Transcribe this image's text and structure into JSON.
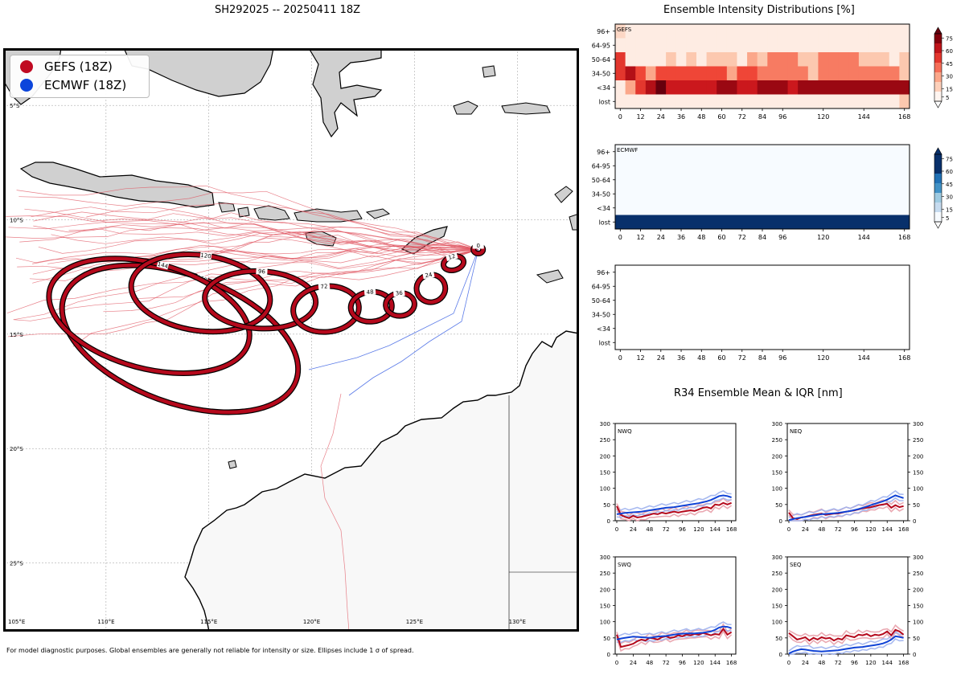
{
  "page": {
    "main_title": "SH292025 -- 20250411 18Z",
    "right_title": "Ensemble Intensity Distributions [%]",
    "r34_title": "R34 Ensemble Mean & IQR [nm]",
    "footnote": "For model diagnostic purposes. Global ensembles are generally not reliable for intensity or size. Ellipses include 1 σ of spread."
  },
  "colors": {
    "gefs": "#b5091c",
    "ecmwf": "#1043d6",
    "land": "#d4d4d4",
    "ocean": "#ffffff"
  },
  "legend": [
    {
      "label": "GEFS (18Z)",
      "color": "#c00a22"
    },
    {
      "label": "ECMWF (18Z)",
      "color": "#0c45db"
    }
  ],
  "map": {
    "lat_labels": [
      "5°S",
      "10°S",
      "15°S",
      "20°S",
      "25°S"
    ],
    "lon_labels": [
      "105°E",
      "110°E",
      "115°E",
      "120°E",
      "125°E",
      "130°E"
    ]
  },
  "chart_data": [
    {
      "type": "track-map",
      "title": "SH292025 -- 20250411 18Z",
      "extent": {
        "lon": [
          105,
          133
        ],
        "lat": [
          -28,
          -2.5
        ]
      },
      "lat_ticks": [
        -5,
        -10,
        -15,
        -20,
        -25
      ],
      "lon_ticks": [
        105,
        110,
        115,
        120,
        125,
        130
      ],
      "ellipses": [
        {
          "hour": 0,
          "lon": 128.1,
          "lat": -11.3,
          "a_deg": 0.15,
          "b_deg": 0.12,
          "angle": 0
        },
        {
          "hour": 12,
          "lon": 126.9,
          "lat": -11.9,
          "a_deg": 0.5,
          "b_deg": 0.3,
          "angle": -15
        },
        {
          "hour": 24,
          "lon": 125.8,
          "lat": -13.0,
          "a_deg": 0.7,
          "b_deg": 0.6,
          "angle": -10
        },
        {
          "hour": 36,
          "lon": 124.3,
          "lat": -13.7,
          "a_deg": 0.7,
          "b_deg": 0.5,
          "angle": -5
        },
        {
          "hour": 48,
          "lon": 122.9,
          "lat": -13.8,
          "a_deg": 1.0,
          "b_deg": 0.65,
          "angle": -5
        },
        {
          "hour": 72,
          "lon": 120.7,
          "lat": -13.9,
          "a_deg": 1.6,
          "b_deg": 1.0,
          "angle": -5
        },
        {
          "hour": 96,
          "lon": 117.5,
          "lat": -13.5,
          "a_deg": 2.7,
          "b_deg": 1.25,
          "angle": 3
        },
        {
          "hour": 120,
          "lon": 114.6,
          "lat": -13.2,
          "a_deg": 3.4,
          "b_deg": 1.65,
          "angle": 8
        },
        {
          "hour": 144,
          "lon": 112.1,
          "lat": -14.2,
          "a_deg": 5.0,
          "b_deg": 2.3,
          "angle": 15
        },
        {
          "hour": 168,
          "lon": 113.6,
          "lat": -15.2,
          "a_deg": 6.0,
          "b_deg": 2.8,
          "angle": 20
        }
      ]
    },
    {
      "type": "heatmap",
      "title": "GEFS",
      "x_ticks": [
        0,
        12,
        24,
        36,
        48,
        60,
        72,
        84,
        96,
        120,
        144,
        168
      ],
      "y_categories": [
        "96+",
        "64-95",
        "50-64",
        "34-50",
        "<34",
        "lost"
      ],
      "hours": [
        0,
        6,
        12,
        18,
        24,
        30,
        36,
        42,
        48,
        54,
        60,
        66,
        72,
        78,
        84,
        90,
        96,
        102,
        108,
        114,
        120,
        126,
        132,
        138,
        144,
        150,
        156,
        162,
        168
      ],
      "colorbar_ticks": [
        5,
        15,
        30,
        45,
        60,
        75
      ],
      "values": [
        [
          10,
          3,
          3,
          3,
          3,
          3,
          3,
          3,
          3,
          3,
          3,
          3,
          3,
          3,
          3,
          3,
          3,
          3,
          3,
          3,
          3,
          3,
          3,
          3,
          3,
          3,
          3,
          3,
          3
        ],
        [
          3,
          3,
          3,
          3,
          3,
          3,
          3,
          3,
          3,
          3,
          3,
          3,
          3,
          3,
          3,
          3,
          3,
          3,
          3,
          3,
          3,
          3,
          3,
          3,
          3,
          3,
          3,
          3,
          3
        ],
        [
          50,
          3,
          3,
          3,
          3,
          15,
          3,
          15,
          3,
          15,
          15,
          15,
          3,
          25,
          15,
          35,
          35,
          35,
          15,
          15,
          35,
          35,
          35,
          35,
          15,
          15,
          15,
          3,
          15
        ],
        [
          50,
          65,
          45,
          25,
          45,
          45,
          45,
          45,
          45,
          45,
          45,
          25,
          45,
          45,
          35,
          35,
          35,
          35,
          35,
          15,
          35,
          35,
          35,
          35,
          35,
          35,
          35,
          35,
          15
        ],
        [
          3,
          25,
          50,
          65,
          80,
          60,
          60,
          60,
          60,
          60,
          70,
          70,
          60,
          60,
          70,
          70,
          70,
          60,
          70,
          70,
          70,
          70,
          70,
          70,
          70,
          70,
          70,
          70,
          70
        ],
        [
          3,
          3,
          3,
          3,
          3,
          3,
          3,
          3,
          3,
          3,
          3,
          3,
          3,
          3,
          3,
          3,
          3,
          3,
          3,
          3,
          3,
          3,
          3,
          3,
          3,
          3,
          3,
          3,
          15
        ]
      ]
    },
    {
      "type": "heatmap",
      "title": "ECMWF",
      "x_ticks": [
        0,
        12,
        24,
        36,
        48,
        60,
        72,
        84,
        96,
        120,
        144,
        168
      ],
      "y_categories": [
        "96+",
        "64-95",
        "50-64",
        "34-50",
        "<34",
        "lost"
      ],
      "colorbar_ticks": [
        5,
        15,
        30,
        45,
        60,
        75
      ],
      "row_values": [
        0,
        0,
        0,
        0,
        0,
        100
      ]
    },
    {
      "type": "heatmap",
      "title": "",
      "x_ticks": [
        0,
        12,
        24,
        36,
        48,
        60,
        72,
        84,
        96,
        120,
        144,
        168
      ],
      "y_categories": [
        "96+",
        "64-95",
        "50-64",
        "34-50",
        "<34",
        "lost"
      ],
      "values": []
    },
    {
      "type": "line",
      "title": "NWQ",
      "x": [
        0,
        6,
        12,
        18,
        24,
        30,
        36,
        42,
        48,
        54,
        60,
        66,
        72,
        78,
        84,
        90,
        96,
        102,
        108,
        114,
        120,
        126,
        132,
        138,
        144,
        150,
        156,
        162,
        168
      ],
      "x_ticks": [
        0,
        24,
        48,
        72,
        96,
        120,
        144,
        168
      ],
      "y_ticks": [
        0,
        50,
        100,
        150,
        200,
        250,
        300
      ],
      "ylim": [
        0,
        300
      ],
      "series": [
        {
          "name": "GEFS",
          "values": [
            45,
            18,
            12,
            8,
            15,
            10,
            12,
            15,
            18,
            22,
            20,
            25,
            22,
            25,
            28,
            25,
            28,
            30,
            32,
            30,
            35,
            40,
            42,
            38,
            50,
            48,
            55,
            50,
            55
          ]
        },
        {
          "name": "ECMWF",
          "values": [
            20,
            22,
            24,
            25,
            26,
            27,
            28,
            30,
            32,
            34,
            36,
            38,
            40,
            41,
            42,
            44,
            46,
            48,
            50,
            52,
            54,
            57,
            60,
            64,
            70,
            76,
            78,
            76,
            72
          ]
        }
      ]
    },
    {
      "type": "line",
      "title": "NEQ",
      "x": [
        0,
        6,
        12,
        18,
        24,
        30,
        36,
        42,
        48,
        54,
        60,
        66,
        72,
        78,
        84,
        90,
        96,
        102,
        108,
        114,
        120,
        126,
        132,
        138,
        144,
        150,
        156,
        162,
        168
      ],
      "x_ticks": [
        0,
        24,
        48,
        72,
        96,
        120,
        144,
        168
      ],
      "y_ticks": [
        0,
        50,
        100,
        150,
        200,
        250,
        300
      ],
      "ylim": [
        0,
        300
      ],
      "series": [
        {
          "name": "GEFS",
          "values": [
            25,
            8,
            5,
            10,
            12,
            15,
            18,
            20,
            22,
            18,
            20,
            22,
            22,
            25,
            28,
            30,
            32,
            35,
            38,
            40,
            42,
            45,
            48,
            50,
            52,
            40,
            48,
            42,
            45
          ]
        },
        {
          "name": "ECMWF",
          "values": [
            2,
            5,
            8,
            10,
            12,
            14,
            16,
            18,
            20,
            21,
            22,
            23,
            24,
            26,
            28,
            30,
            33,
            36,
            40,
            44,
            48,
            52,
            56,
            60,
            65,
            72,
            78,
            74,
            70
          ]
        }
      ]
    },
    {
      "type": "line",
      "title": "SWQ",
      "x": [
        0,
        6,
        12,
        18,
        24,
        30,
        36,
        42,
        48,
        54,
        60,
        66,
        72,
        78,
        84,
        90,
        96,
        102,
        108,
        114,
        120,
        126,
        132,
        138,
        144,
        150,
        156,
        162,
        168
      ],
      "x_ticks": [
        0,
        24,
        48,
        72,
        96,
        120,
        144,
        168
      ],
      "y_ticks": [
        0,
        50,
        100,
        150,
        200,
        250,
        300
      ],
      "ylim": [
        0,
        300
      ],
      "series": [
        {
          "name": "GEFS",
          "values": [
            60,
            22,
            25,
            28,
            32,
            40,
            45,
            42,
            50,
            48,
            45,
            52,
            55,
            50,
            52,
            58,
            55,
            60,
            58,
            62,
            60,
            65,
            62,
            58,
            62,
            60,
            78,
            60,
            68
          ]
        },
        {
          "name": "ECMWF",
          "values": [
            45,
            48,
            50,
            52,
            54,
            53,
            52,
            51,
            50,
            52,
            54,
            55,
            56,
            58,
            60,
            62,
            63,
            64,
            64,
            64,
            65,
            66,
            68,
            70,
            75,
            82,
            85,
            84,
            80
          ]
        }
      ]
    },
    {
      "type": "line",
      "title": "SEQ",
      "x": [
        0,
        6,
        12,
        18,
        24,
        30,
        36,
        42,
        48,
        54,
        60,
        66,
        72,
        78,
        84,
        90,
        96,
        102,
        108,
        114,
        120,
        126,
        132,
        138,
        144,
        150,
        156,
        162,
        168
      ],
      "x_ticks": [
        0,
        24,
        48,
        72,
        96,
        120,
        144,
        168
      ],
      "y_ticks": [
        0,
        50,
        100,
        150,
        200,
        250,
        300
      ],
      "ylim": [
        0,
        300
      ],
      "series": [
        {
          "name": "GEFS",
          "values": [
            65,
            55,
            45,
            48,
            52,
            42,
            50,
            45,
            52,
            48,
            50,
            42,
            48,
            45,
            58,
            55,
            52,
            60,
            58,
            62,
            55,
            60,
            58,
            62,
            70,
            58,
            75,
            70,
            60
          ]
        },
        {
          "name": "ECMWF",
          "values": [
            2,
            8,
            12,
            15,
            14,
            12,
            10,
            9,
            8,
            9,
            10,
            11,
            12,
            14,
            16,
            18,
            20,
            21,
            22,
            24,
            26,
            28,
            30,
            33,
            38,
            45,
            55,
            53,
            50
          ]
        }
      ]
    }
  ]
}
